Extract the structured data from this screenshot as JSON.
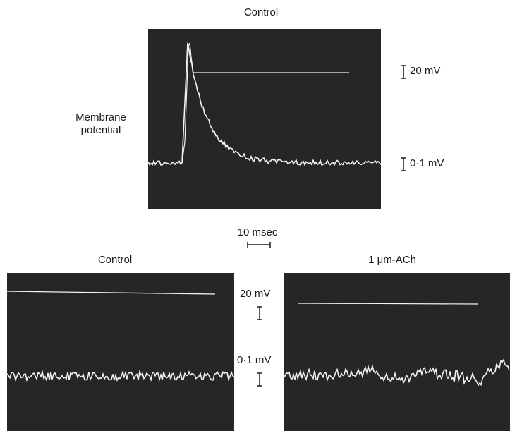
{
  "top_panel": {
    "title": "Control",
    "ylabel_line1": "Membrane",
    "ylabel_line2": "potential",
    "scale_upper": "20 mV",
    "scale_lower": "0·1 mV"
  },
  "time_scale": {
    "label": "10 msec"
  },
  "bottom_left_panel": {
    "title": "Control"
  },
  "bottom_right_panel": {
    "title": "1 μm-ACh"
  },
  "bottom_scales": {
    "upper": "20 mV",
    "lower": "0·1 mV"
  },
  "colors": {
    "screen": "#262626",
    "trace": "#f2f2f2",
    "ink": "#1a1a1a"
  }
}
